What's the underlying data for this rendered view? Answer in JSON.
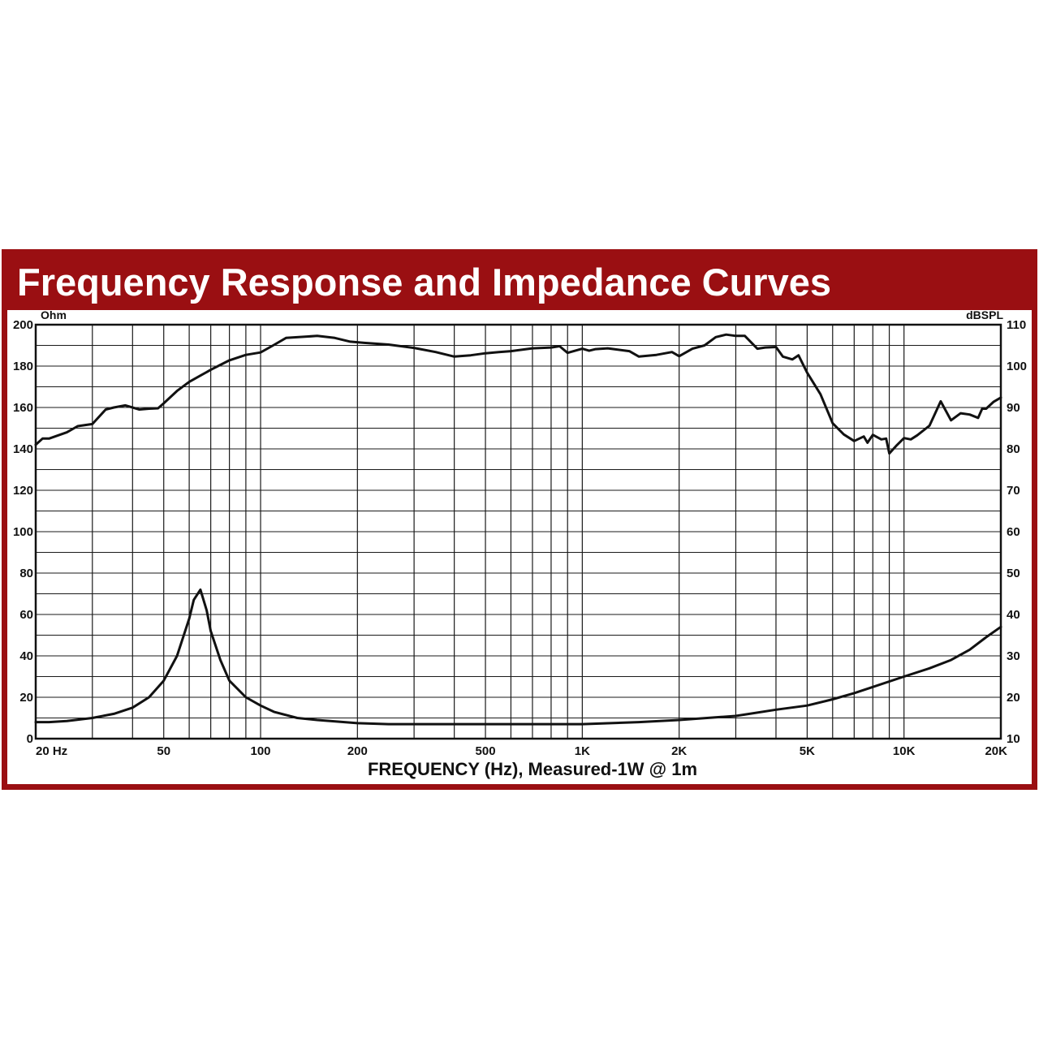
{
  "chart_data": {
    "type": "line",
    "title": "Frequency Response and Impedance Curves",
    "xlabel": "FREQUENCY (Hz), Measured-1W @ 1m",
    "ylabel_left": "Ohm",
    "ylabel_right": "dBSPL",
    "x_scale": "log",
    "xlim": [
      20,
      20000
    ],
    "ylim_left": [
      0,
      200
    ],
    "ylim_right": [
      10,
      110
    ],
    "grid": true,
    "x_ticks": [
      {
        "value": 20,
        "label": "20 Hz"
      },
      {
        "value": 50,
        "label": "50"
      },
      {
        "value": 100,
        "label": "100"
      },
      {
        "value": 200,
        "label": "200"
      },
      {
        "value": 500,
        "label": "500"
      },
      {
        "value": 1000,
        "label": "1K"
      },
      {
        "value": 2000,
        "label": "2K"
      },
      {
        "value": 5000,
        "label": "5K"
      },
      {
        "value": 10000,
        "label": "10K"
      },
      {
        "value": 20000,
        "label": "20K"
      }
    ],
    "y_ticks_left": [
      "0",
      "20",
      "40",
      "60",
      "80",
      "100",
      "120",
      "140",
      "160",
      "180",
      "200"
    ],
    "y_ticks_right": [
      "10",
      "20",
      "30",
      "40",
      "50",
      "60",
      "70",
      "80",
      "90",
      "100",
      "110"
    ],
    "series": [
      {
        "axis": "right",
        "x": [
          20,
          21,
          22,
          25,
          27,
          30,
          33,
          35,
          38,
          42,
          45,
          48,
          50,
          55,
          60,
          65,
          70,
          75,
          80,
          90,
          100,
          110,
          120,
          150,
          170,
          190,
          210,
          250,
          300,
          350,
          400,
          450,
          500,
          550,
          600,
          700,
          800,
          850,
          900,
          1000,
          1050,
          1100,
          1200,
          1400,
          1500,
          1700,
          1900,
          2000,
          2200,
          2400,
          2600,
          2800,
          3000,
          3200,
          3500,
          3700,
          4000,
          4200,
          4500,
          4700,
          5000,
          5500,
          6000,
          6500,
          7000,
          7500,
          7700,
          8000,
          8500,
          8800,
          9000,
          9500,
          10000,
          10500,
          11000,
          12000,
          13000,
          14000,
          15000,
          16000,
          17000,
          17500,
          18000,
          19000,
          20000
        ],
        "values": [
          81,
          82.5,
          82.5,
          84,
          85.5,
          86,
          89.5,
          90,
          90.5,
          89.5,
          89.7,
          89.8,
          91,
          94,
          96.2,
          97.7,
          99.1,
          100.3,
          101.4,
          102.7,
          103.3,
          105.1,
          106.8,
          107.3,
          106.8,
          105.9,
          105.6,
          105.2,
          104.4,
          103.4,
          102.3,
          102.6,
          103.1,
          103.4,
          103.6,
          104.3,
          104.5,
          104.8,
          103.2,
          104.2,
          103.7,
          104.1,
          104.3,
          103.6,
          102.3,
          102.7,
          103.4,
          102.4,
          104.2,
          105,
          107,
          107.6,
          107.3,
          107.3,
          104.2,
          104.5,
          104.6,
          102.3,
          101.6,
          102.6,
          98.4,
          93.2,
          86.2,
          83.5,
          81.9,
          83,
          81.5,
          83.4,
          82.3,
          82.5,
          78.9,
          80.9,
          82.6,
          82.3,
          83.3,
          85.6,
          91.5,
          86.9,
          88.6,
          88.3,
          87.5,
          89.7,
          89.7,
          91.4,
          92.4
        ]
      },
      {
        "axis": "left",
        "x": [
          20,
          22,
          25,
          30,
          35,
          40,
          45,
          50,
          55,
          60,
          62,
          65,
          68,
          70,
          75,
          80,
          90,
          100,
          110,
          130,
          150,
          200,
          250,
          300,
          400,
          500,
          700,
          1000,
          1500,
          2000,
          3000,
          4000,
          5000,
          6000,
          7000,
          8000,
          10000,
          12000,
          14000,
          16000,
          18000,
          20000
        ],
        "values": [
          8,
          8,
          8.5,
          10,
          12,
          15,
          20,
          28,
          40,
          58,
          67,
          72,
          62,
          52,
          38,
          28,
          20,
          16,
          13,
          10,
          9,
          7.5,
          7,
          7,
          7,
          7,
          7,
          7,
          8,
          9,
          11,
          14,
          16,
          19,
          22,
          25,
          30,
          34,
          38,
          43,
          49,
          54
        ]
      }
    ]
  }
}
